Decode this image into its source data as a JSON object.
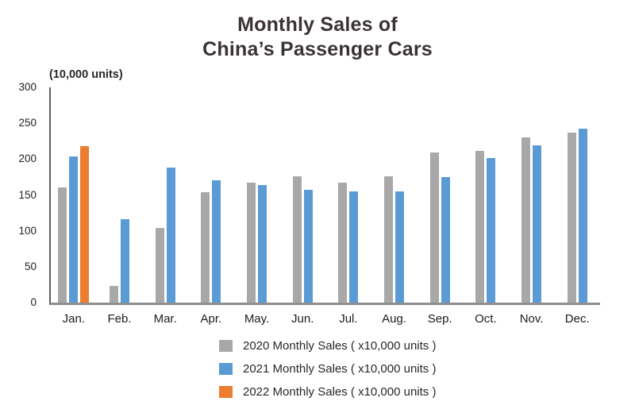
{
  "header": {
    "title_line1": "Monthly Sales of",
    "title_line2": "China’s Passenger Cars"
  },
  "chart_data": {
    "type": "bar",
    "title": "Monthly Sales of China’s Passenger Cars",
    "unit_label": "(10,000 units)",
    "xlabel": "",
    "ylabel": "(10,000 units)",
    "ylim": [
      0,
      300
    ],
    "yticks": [
      0,
      50,
      100,
      150,
      200,
      250,
      300
    ],
    "grid": false,
    "legend_position": "bottom",
    "categories": [
      "Jan.",
      "Feb.",
      "Mar.",
      "Apr.",
      "May.",
      "Jun.",
      "Jul.",
      "Aug.",
      "Sep.",
      "Oct.",
      "Nov.",
      "Dec."
    ],
    "series": [
      {
        "key": "2020",
        "name": "2020 Monthly Sales ( x10,000 units )",
        "color": "#a8a8a8",
        "values": [
          161,
          23,
          104,
          154,
          167,
          176,
          167,
          176,
          209,
          211,
          230,
          237
        ]
      },
      {
        "key": "2021",
        "name": "2021 Monthly Sales ( x10,000 units )",
        "color": "#5b9bd5",
        "values": [
          204,
          116,
          188,
          170,
          164,
          157,
          155,
          155,
          175,
          201,
          219,
          242
        ]
      },
      {
        "key": "2022",
        "name": "2022 Monthly Sales ( x10,000 units )",
        "color": "#ed7d31",
        "values": [
          218,
          null,
          null,
          null,
          null,
          null,
          null,
          null,
          null,
          null,
          null,
          null
        ]
      }
    ]
  },
  "colors": {
    "axis_line": "#5f5f5f",
    "baseline": "#8f8f8f",
    "title_text": "#3a3335",
    "label_text": "#231f20"
  }
}
